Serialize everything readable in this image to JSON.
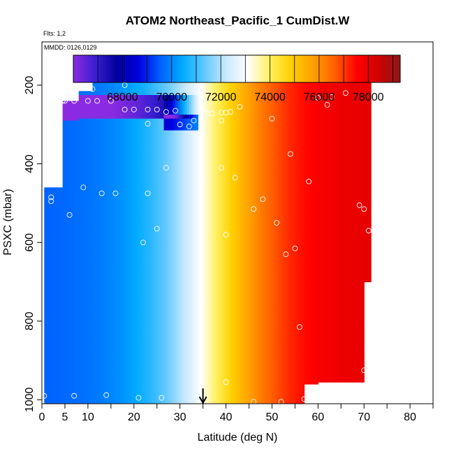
{
  "chart_data": {
    "type": "heatmap",
    "title": "ATOM2 Northeast_Pacific_1 CumDist.W",
    "flights_note": "Flts: 1,2",
    "dates_note": "MMDD: 0126,0129",
    "xlabel": "Latitude (deg N)",
    "ylabel": "PSXC (mbar)",
    "xlim": [
      0,
      85
    ],
    "ylim": [
      1010,
      90
    ],
    "y_reversed": true,
    "x_ticks": [
      0,
      5,
      10,
      20,
      30,
      40,
      50,
      60,
      70,
      80
    ],
    "x_ticks_unlabeled": [
      15,
      25,
      35,
      45,
      55,
      65,
      75,
      85
    ],
    "y_ticks": [
      200,
      400,
      600,
      800,
      1000
    ],
    "colorbar": {
      "min": 66000,
      "max": 79300,
      "tick_values": [
        68000,
        70000,
        72000,
        74000,
        76000,
        78000
      ],
      "separator_values": [
        66000,
        67000,
        69000,
        71000,
        73000,
        75000,
        77000,
        79000
      ],
      "colors": [
        "#8a2be2",
        "#3a1fd0",
        "#00009c",
        "#0000e0",
        "#0060ff",
        "#00aaff",
        "#60c8ff",
        "#c8e8ff",
        "#ffffff",
        "#fff060",
        "#ffd000",
        "#ffa000",
        "#ff6000",
        "#ff0000",
        "#d00000",
        "#8c1818"
      ]
    },
    "marker_latitude": 35,
    "series": [
      {
        "points": [
          [
            11,
            210
          ],
          [
            18,
            200
          ],
          [
            30,
            180
          ],
          [
            66,
            220
          ],
          [
            63,
            230
          ],
          [
            60,
            232
          ],
          [
            62,
            250
          ],
          [
            4.5,
            240
          ],
          [
            5,
            240
          ],
          [
            7,
            240
          ],
          [
            10,
            240
          ],
          [
            12,
            240
          ],
          [
            15,
            240
          ],
          [
            18,
            262
          ],
          [
            20,
            262
          ],
          [
            23,
            262
          ],
          [
            25,
            262
          ],
          [
            27,
            268
          ],
          [
            29,
            265
          ],
          [
            23,
            298
          ],
          [
            30,
            300
          ],
          [
            32,
            305
          ],
          [
            33,
            290
          ],
          [
            36,
            272
          ],
          [
            37,
            272
          ],
          [
            39,
            270
          ],
          [
            40,
            270
          ],
          [
            41,
            268
          ],
          [
            43,
            255
          ],
          [
            39,
            290
          ],
          [
            50,
            285
          ],
          [
            54,
            375
          ],
          [
            58,
            445
          ],
          [
            42,
            435
          ],
          [
            39,
            410
          ],
          [
            27,
            410
          ],
          [
            23,
            475
          ],
          [
            16,
            475
          ],
          [
            13,
            475
          ],
          [
            9,
            460
          ],
          [
            2,
            485
          ],
          [
            2,
            495
          ],
          [
            6,
            530
          ],
          [
            46,
            515
          ],
          [
            48,
            490
          ],
          [
            51,
            550
          ],
          [
            69,
            505
          ],
          [
            70,
            515
          ],
          [
            71,
            570
          ],
          [
            25,
            565
          ],
          [
            22,
            600
          ],
          [
            40,
            580
          ],
          [
            55,
            615
          ],
          [
            53,
            630
          ],
          [
            56,
            815
          ],
          [
            70,
            925
          ],
          [
            40,
            955
          ],
          [
            0.5,
            990
          ],
          [
            7,
            990
          ],
          [
            14,
            988
          ],
          [
            21,
            995
          ],
          [
            26,
            995
          ],
          [
            46,
            1005
          ],
          [
            52,
            1005
          ],
          [
            57,
            998
          ]
        ]
      }
    ]
  }
}
